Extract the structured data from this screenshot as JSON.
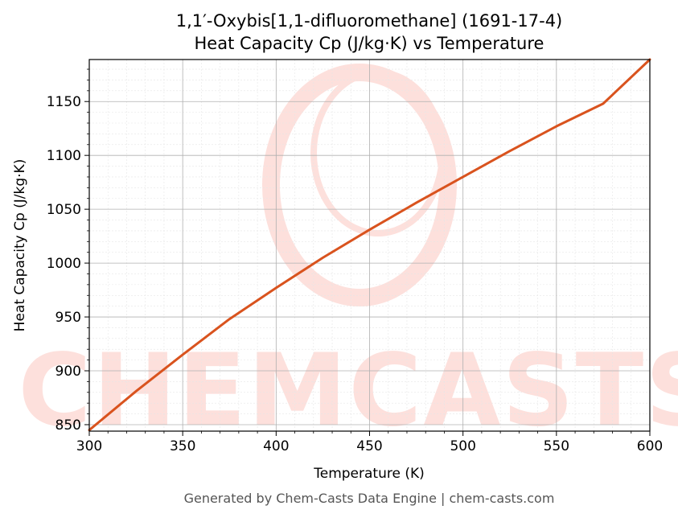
{
  "chart_data": {
    "type": "line",
    "title_line1": "1,1′-Oxybis[1,1-difluoromethane] (1691-17-4)",
    "title_line2": "Heat Capacity Cp (J/kg·K) vs Temperature",
    "xlabel": "Temperature (K)",
    "ylabel": "Heat Capacity Cp (J/kg·K)",
    "xlim": [
      300,
      600
    ],
    "ylim": [
      844,
      1189
    ],
    "xticks": [
      300,
      350,
      400,
      450,
      500,
      550,
      600
    ],
    "yticks": [
      850,
      900,
      950,
      1000,
      1050,
      1100,
      1150
    ],
    "grid": true,
    "series": [
      {
        "color": "#d9531e",
        "x": [
          300,
          325,
          350,
          375,
          400,
          425,
          450,
          475,
          500,
          525,
          550,
          575,
          600
        ],
        "y": [
          845,
          881,
          915,
          948,
          977,
          1005,
          1031,
          1056,
          1080,
          1104,
          1127,
          1148,
          1189
        ]
      }
    ]
  },
  "watermark": {
    "text": "CHEMCASTS",
    "color": "#fde0dc"
  },
  "footer": "Generated by Chem-Casts Data Engine | chem-casts.com"
}
